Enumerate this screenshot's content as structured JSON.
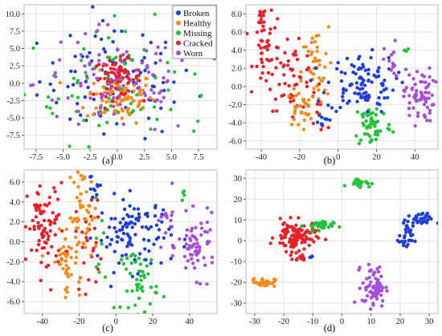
{
  "colors": {
    "Broken": "#1f3fd6",
    "Healthy": "#f28a1c",
    "Missing": "#22c33a",
    "Cracked": "#e8202a",
    "Worn": "#a74fd8"
  },
  "grid": true,
  "chart_data": [
    {
      "type": "scatter",
      "panel_label": "(a)",
      "xlim": [
        -8.6,
        9.2
      ],
      "ylim": [
        -9.5,
        11.3
      ],
      "xticks": [
        -7.5,
        -5,
        -2.5,
        0,
        2.5,
        5,
        7.5
      ],
      "xtick_labels": [
        "-7.5",
        "-5.0",
        "-2.5",
        "0.0",
        "2.5",
        "5.0",
        "7.5"
      ],
      "yticks": [
        -7.5,
        -5,
        -2.5,
        0,
        2.5,
        5,
        7.5,
        10
      ],
      "ytick_labels": [
        "-7.5",
        "-5.0",
        "-2.5",
        "0.0",
        "2.5",
        "5.0",
        "7.5",
        "10.0"
      ],
      "legend": {
        "position": "top-right",
        "entries": [
          "Broken",
          "Healthy",
          "Missing",
          "Cracked",
          "Worn"
        ]
      },
      "series": [
        {
          "name": "Broken",
          "clusters": [
            {
              "cx": 0,
              "cy": 0.5,
              "sx": 3.6,
              "sy": 4.2,
              "n": 90
            }
          ]
        },
        {
          "name": "Healthy",
          "clusters": [
            {
              "cx": 0.3,
              "cy": -2,
              "sx": 1.6,
              "sy": 1.8,
              "n": 90
            }
          ]
        },
        {
          "name": "Missing",
          "clusters": [
            {
              "cx": 0,
              "cy": 0,
              "sx": 4.3,
              "sy": 4.3,
              "n": 80
            }
          ]
        },
        {
          "name": "Cracked",
          "clusters": [
            {
              "cx": 0,
              "cy": 0.8,
              "sx": 1.1,
              "sy": 1.3,
              "n": 70
            }
          ]
        },
        {
          "name": "Worn",
          "clusters": [
            {
              "cx": 0,
              "cy": 0,
              "sx": 3.8,
              "sy": 4,
              "n": 90
            }
          ]
        }
      ]
    },
    {
      "type": "scatter",
      "panel_label": "(b)",
      "xlim": [
        -48,
        52
      ],
      "ylim": [
        -6.9,
        9
      ],
      "xticks": [
        -40,
        -20,
        0,
        20,
        40
      ],
      "xtick_labels": [
        "-40",
        "-20",
        "0",
        "20",
        "40"
      ],
      "yticks": [
        -6,
        -4,
        -2,
        0,
        2,
        4,
        6,
        8
      ],
      "ytick_labels": [
        "-6.0",
        "-4.0",
        "-2.0",
        "0.0",
        "2.0",
        "4.0",
        "6.0",
        "8.0"
      ],
      "series": [
        {
          "name": "Cracked",
          "clusters": [
            {
              "cx": -40,
              "cy": 7.3,
              "sx": 1.2,
              "sy": 0.7,
              "n": 15
            },
            {
              "cx": -36,
              "cy": 4,
              "sx": 4,
              "sy": 1.8,
              "n": 40
            },
            {
              "cx": -24,
              "cy": 1,
              "sx": 6,
              "sy": 1.8,
              "n": 45
            },
            {
              "cx": -11,
              "cy": -2,
              "sx": 2.5,
              "sy": 1.5,
              "n": 12
            }
          ]
        },
        {
          "name": "Healthy",
          "clusters": [
            {
              "cx": -20,
              "cy": -2.5,
              "sx": 3.5,
              "sy": 1,
              "n": 30
            },
            {
              "cx": -12,
              "cy": 1.5,
              "sx": 3.5,
              "sy": 2.5,
              "n": 45
            }
          ]
        },
        {
          "name": "Missing",
          "clusters": [
            {
              "cx": 18,
              "cy": -4.2,
              "sx": 5,
              "sy": 1.3,
              "n": 55
            },
            {
              "cx": 35,
              "cy": 3.9,
              "sx": 1,
              "sy": 0.3,
              "n": 4
            }
          ]
        },
        {
          "name": "Broken",
          "clusters": [
            {
              "cx": 12,
              "cy": 0.3,
              "sx": 9,
              "sy": 1.6,
              "n": 100
            },
            {
              "cx": -9,
              "cy": -4,
              "sx": 2,
              "sy": 0.8,
              "n": 8
            }
          ]
        },
        {
          "name": "Worn",
          "clusters": [
            {
              "cx": 42,
              "cy": -1,
              "sx": 4,
              "sy": 1.5,
              "n": 65
            },
            {
              "cx": 28,
              "cy": 2.5,
              "sx": 2,
              "sy": 1.2,
              "n": 15
            }
          ]
        }
      ]
    },
    {
      "type": "scatter",
      "panel_label": "(c)",
      "xlim": [
        -50,
        55
      ],
      "ylim": [
        -7.2,
        7.2
      ],
      "xticks": [
        -40,
        -20,
        0,
        20,
        40
      ],
      "xtick_labels": [
        "-40",
        "-20",
        "0",
        "20",
        "40"
      ],
      "yticks": [
        -6,
        -4,
        -2,
        0,
        2,
        4,
        6
      ],
      "ytick_labels": [
        "-6.0",
        "-4.0",
        "-2.0",
        "0.0",
        "2.0",
        "4.0",
        "6.0"
      ],
      "series": [
        {
          "name": "Cracked",
          "clusters": [
            {
              "cx": -38,
              "cy": 1.2,
              "sx": 5,
              "sy": 2.3,
              "n": 80
            },
            {
              "cx": -14,
              "cy": 0,
              "sx": 4,
              "sy": 2.5,
              "n": 25
            }
          ]
        },
        {
          "name": "Healthy",
          "clusters": [
            {
              "cx": -28,
              "cy": -2,
              "sx": 4,
              "sy": 1.5,
              "n": 40
            },
            {
              "cx": -18,
              "cy": 2.5,
              "sx": 4,
              "sy": 2.5,
              "n": 50
            }
          ]
        },
        {
          "name": "Missing",
          "clusters": [
            {
              "cx": 13,
              "cy": -3.8,
              "sx": 5,
              "sy": 1.6,
              "n": 50
            },
            {
              "cx": 37,
              "cy": 4.8,
              "sx": 1,
              "sy": 0.3,
              "n": 4
            },
            {
              "cx": -10,
              "cy": 0,
              "sx": 2,
              "sy": 2,
              "n": 8
            }
          ]
        },
        {
          "name": "Broken",
          "clusters": [
            {
              "cx": 10,
              "cy": 0.8,
              "sx": 10,
              "sy": 1.8,
              "n": 100
            },
            {
              "cx": -12,
              "cy": 5.5,
              "sx": 2,
              "sy": 1,
              "n": 10
            }
          ]
        },
        {
          "name": "Worn",
          "clusters": [
            {
              "cx": 44,
              "cy": -0.5,
              "sx": 5,
              "sy": 1.5,
              "n": 65
            },
            {
              "cx": 28,
              "cy": 1.5,
              "sx": 3,
              "sy": 1.5,
              "n": 15
            }
          ]
        }
      ]
    },
    {
      "type": "scatter",
      "panel_label": "(d)",
      "xlim": [
        -33,
        33
      ],
      "ylim": [
        -35,
        34
      ],
      "xticks": [
        -30,
        -20,
        -10,
        0,
        10,
        20,
        30
      ],
      "xtick_labels": [
        "-30",
        "-20",
        "-10",
        "0",
        "10",
        "20",
        "30"
      ],
      "yticks": [
        -30,
        -20,
        -10,
        0,
        10,
        20,
        30
      ],
      "ytick_labels": [
        "-30",
        "-20",
        "-10",
        "0",
        "10",
        "20",
        "30"
      ],
      "series": [
        {
          "name": "Cracked",
          "clusters": [
            {
              "cx": -16,
              "cy": 2,
              "sx": 3.5,
              "sy": 3.5,
              "n": 110
            },
            {
              "cx": -14,
              "cy": -8,
              "sx": 1.2,
              "sy": 0.8,
              "n": 10
            }
          ]
        },
        {
          "name": "Healthy",
          "clusters": [
            {
              "cx": -27,
              "cy": -20,
              "sx": 2,
              "sy": 1,
              "n": 35
            }
          ]
        },
        {
          "name": "Missing",
          "clusters": [
            {
              "cx": 6,
              "cy": 28,
              "sx": 2,
              "sy": 1,
              "n": 25
            },
            {
              "cx": -8,
              "cy": 7,
              "sx": 2.5,
              "sy": 1.5,
              "n": 30
            }
          ]
        },
        {
          "name": "Broken",
          "clusters": [
            {
              "cx": 26,
              "cy": 10,
              "sx": 2.5,
              "sy": 1.5,
              "n": 35
            },
            {
              "cx": 22,
              "cy": 1,
              "sx": 1.2,
              "sy": 3,
              "n": 25
            },
            {
              "cx": -10,
              "cy": -8,
              "sx": 1,
              "sy": 0.5,
              "n": 3
            }
          ]
        },
        {
          "name": "Worn",
          "clusters": [
            {
              "cx": 11,
              "cy": -22,
              "sx": 2,
              "sy": 5,
              "n": 70
            }
          ]
        }
      ]
    }
  ]
}
